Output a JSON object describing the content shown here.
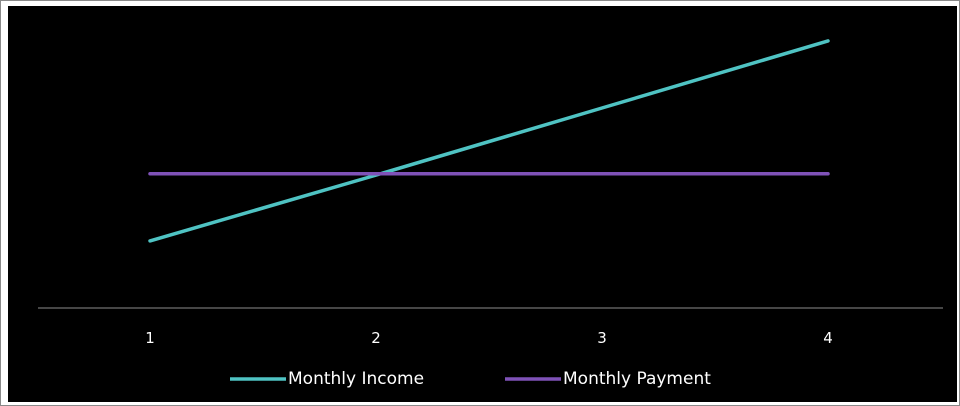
{
  "chart_data": {
    "type": "line",
    "categories": [
      "1",
      "2",
      "3",
      "4"
    ],
    "series": [
      {
        "name": "Monthly Income",
        "values": [
          1,
          1.98,
          2.98,
          3.98
        ],
        "color": "#4fc3c3"
      },
      {
        "name": "Monthly Payment",
        "values": [
          2,
          2,
          2,
          2
        ],
        "color": "#7f52b8"
      }
    ],
    "title": "",
    "xlabel": "",
    "ylabel": "",
    "ylim": [
      0,
      4.5
    ],
    "grid": false,
    "legend_position": "bottom",
    "background": "#000000",
    "axis_color": "#8c8c8c",
    "text_color": "#ffffff"
  }
}
